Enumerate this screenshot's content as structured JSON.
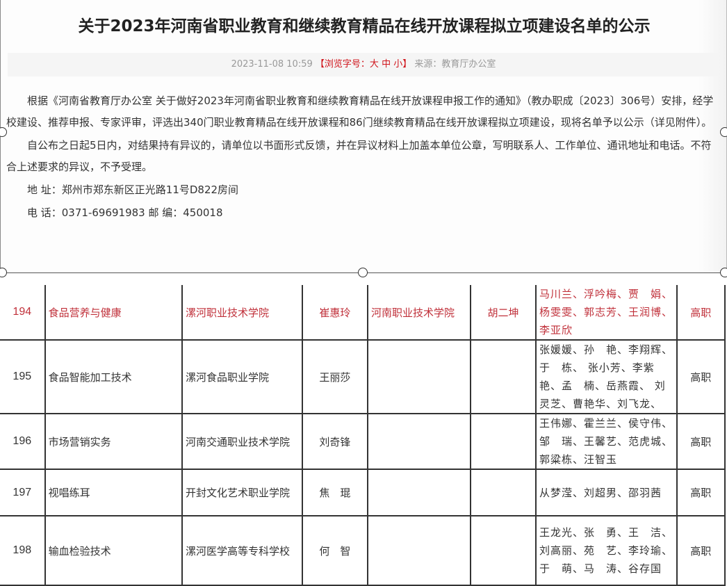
{
  "article": {
    "title": "关于2023年河南省职业教育和继续教育精品在线开放课程拟立项建设名单的公示",
    "datetime": "2023-11-08 10:59",
    "font_size_label": "【浏览字号：",
    "font_large": "大",
    "font_medium": "中",
    "font_small": "小",
    "font_size_close": "】",
    "source": "来源：教育厅办公室",
    "paragraphs": [
      "根据《河南省教育厅办公室 关于做好2023年河南省职业教育和继续教育精品在线开放课程申报工作的通知》（教办职成〔2023〕306号）安排，经学校建设、推荐申报、专家评审，评选出340门职业教育精品在线开放课程和86门继续教育精品在线开放课程拟立项建设，现将名单予以公示（详见附件）。",
      "自公布之日起5日内，对结果持有异议的，请单位以书面形式反馈，并在异议材料上加盖本单位公章，写明联系人、工作单位、通讯地址和电话。不符合上述要求的异议，不予受理。",
      "地 址：郑州市郑东新区正光路11号D822房间",
      "电 话：0371-69691983 邮 编：450018"
    ]
  },
  "highlight_color": "#c0303a",
  "table": {
    "rows": [
      {
        "no": "194",
        "course": "食品营养与健康",
        "school": "漯河职业技术学院",
        "leader": "崔惠玲",
        "partner_school": "河南职业技术学院",
        "partner_leader": "胡二坤",
        "members": "马川兰、浮吟梅、贾　娟、杨雯雯、郭志芳、王润博、李亚欣",
        "level": "高职",
        "highlighted": true
      },
      {
        "no": "195",
        "course": "食品智能加工技术",
        "school": "漯河食品职业学院",
        "leader": "王丽莎",
        "partner_school": "",
        "partner_leader": "",
        "members": "张媛媛、孙　艳、李翔辉、于　栋、 张小芳、李紫艳、孟　楠、岳燕霞、 刘灵芝、曹艳华、刘飞龙、",
        "level": "高职",
        "highlighted": false
      },
      {
        "no": "196",
        "course": "市场营销实务",
        "school": "河南交通职业技术学院",
        "leader": "刘奇锋",
        "partner_school": "",
        "partner_leader": "",
        "members": "王伟娜、霍兰兰、侯守伟、邹　瑞、王馨艺、范虎城、郭粱栋、汪智玉",
        "level": "高职",
        "highlighted": false
      },
      {
        "no": "197",
        "course": "视唱练耳",
        "school": "开封文化艺术职业学院",
        "leader": "焦　琨",
        "partner_school": "",
        "partner_leader": "",
        "members": "从梦滢、刘超男、邵羽茜",
        "level": "高职",
        "highlighted": false
      },
      {
        "no": "198",
        "course": "输血检验技术",
        "school": "漯河医学高等专科学校",
        "leader": "何　智",
        "partner_school": "",
        "partner_leader": "",
        "members": "王龙光、张　勇、王　洁、刘高丽、苑　艺、李玲瑜、于　萌、马　涛、谷存国",
        "level": "高职",
        "highlighted": false
      }
    ]
  }
}
